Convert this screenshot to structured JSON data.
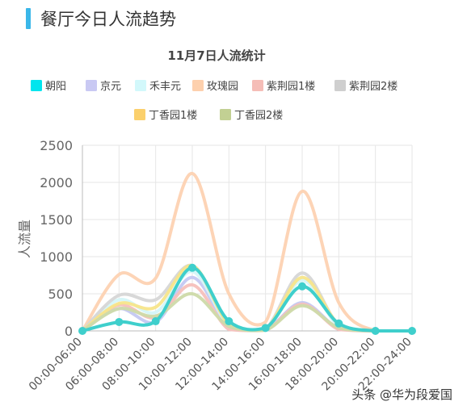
{
  "header": {
    "title": "餐厅今日人流趋势",
    "accent_color": "#3ab7e9"
  },
  "watermark": "头条 @华为段爱国",
  "chart_data": {
    "type": "line",
    "title": "11月7日人流统计",
    "ylabel": "人流量",
    "xlabel": "",
    "ylim": [
      0,
      2500
    ],
    "yticks": [
      0,
      500,
      1000,
      1500,
      2000,
      2500
    ],
    "grid": true,
    "smooth": true,
    "legend_position": "top",
    "categories": [
      "00:00-06:00",
      "06:00-08:00",
      "08:00-10:00",
      "10:00-12:00",
      "12:00-14:00",
      "14:00-16:00",
      "16:00-18:00",
      "18:00-20:00",
      "20:00-22:00",
      "22:00-24:00"
    ],
    "series": [
      {
        "name": "朝阳",
        "color": "#3fcfcc",
        "legend_color": "#00e5ee",
        "values": [
          0,
          120,
          130,
          850,
          130,
          40,
          600,
          100,
          0,
          0
        ],
        "markers": true,
        "emphasis": true
      },
      {
        "name": "京元",
        "color": "#c4c8f2",
        "legend_color": "#c9c9f3",
        "values": [
          0,
          300,
          120,
          720,
          60,
          20,
          380,
          30,
          0,
          0
        ]
      },
      {
        "name": "禾丰元",
        "color": "#d4f6f8",
        "legend_color": "#d2f8fb",
        "values": [
          0,
          420,
          250,
          800,
          80,
          20,
          680,
          60,
          0,
          0
        ]
      },
      {
        "name": "玫瑰园",
        "color": "#fdd2b2",
        "legend_color": "#fdd0ad",
        "values": [
          0,
          760,
          710,
          2120,
          500,
          120,
          1880,
          380,
          0,
          0
        ]
      },
      {
        "name": "紫荆园1楼",
        "color": "#f5c0bc",
        "legend_color": "#f5bdb7",
        "values": [
          0,
          350,
          180,
          620,
          20,
          10,
          360,
          20,
          0,
          0
        ]
      },
      {
        "name": "紫荆园2楼",
        "color": "#d6d6d6",
        "legend_color": "#cfcfcf",
        "values": [
          0,
          480,
          420,
          880,
          100,
          30,
          780,
          80,
          0,
          0
        ]
      },
      {
        "name": "丁香园1楼",
        "color": "#f7e58a",
        "legend_color": "#fbd06c",
        "values": [
          0,
          370,
          320,
          880,
          90,
          20,
          720,
          90,
          0,
          0
        ]
      },
      {
        "name": "丁香园2楼",
        "color": "#cddaa9",
        "legend_color": "#c2d093",
        "values": [
          0,
          300,
          200,
          500,
          60,
          10,
          340,
          40,
          0,
          0
        ]
      }
    ]
  }
}
